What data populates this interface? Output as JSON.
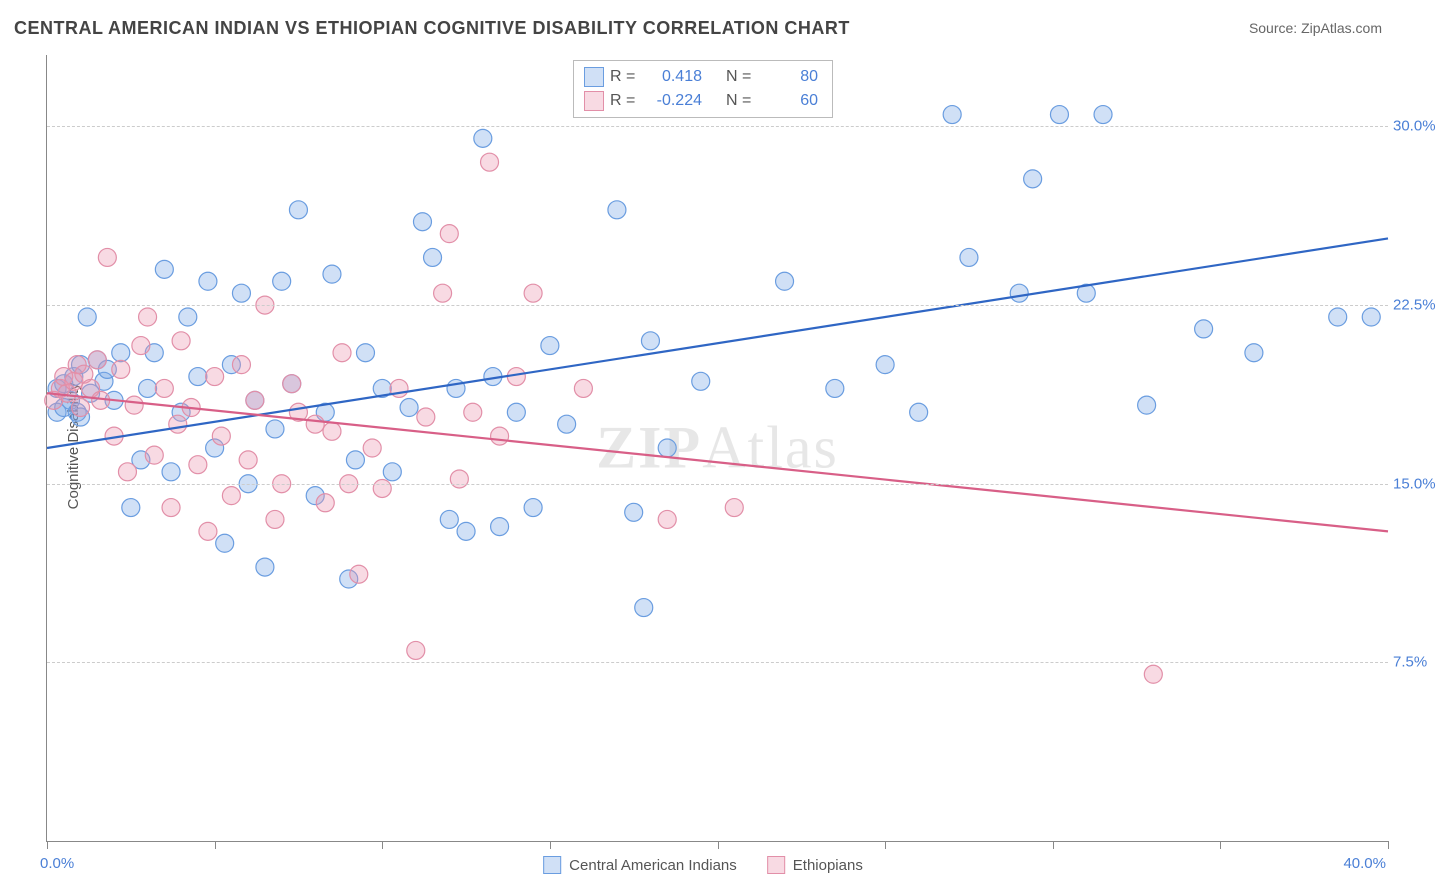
{
  "title": "CENTRAL AMERICAN INDIAN VS ETHIOPIAN COGNITIVE DISABILITY CORRELATION CHART",
  "source": "Source: ZipAtlas.com",
  "ylabel": "Cognitive Disability",
  "watermark_prefix": "ZIP",
  "watermark_suffix": "Atlas",
  "chart": {
    "type": "scatter",
    "x_range": [
      0,
      40
    ],
    "y_range": [
      0,
      33
    ],
    "x_min_label": "0.0%",
    "x_max_label": "40.0%",
    "y_gridlines": [
      7.5,
      15.0,
      22.5,
      30.0
    ],
    "y_tick_labels": [
      "7.5%",
      "15.0%",
      "22.5%",
      "30.0%"
    ],
    "x_ticks": [
      0,
      5,
      10,
      15,
      20,
      25,
      30,
      35,
      40
    ],
    "background_color": "#ffffff",
    "grid_color": "#cccccc",
    "axis_color": "#888888",
    "marker_radius": 9,
    "marker_stroke_width": 1.2,
    "trend_line_width": 2.2,
    "series": [
      {
        "name": "Central American Indians",
        "fill": "rgba(120,165,230,0.35)",
        "stroke": "#6a9de0",
        "line_color": "#2f66c4",
        "R": "0.418",
        "N": "80",
        "trend": {
          "x1": 0,
          "y1": 16.5,
          "x2": 40,
          "y2": 25.3
        },
        "points": [
          [
            0.3,
            18.0
          ],
          [
            0.3,
            19.0
          ],
          [
            0.5,
            18.2
          ],
          [
            0.5,
            19.2
          ],
          [
            0.7,
            18.5
          ],
          [
            0.8,
            19.5
          ],
          [
            0.9,
            18.0
          ],
          [
            1.0,
            20.0
          ],
          [
            1.2,
            22.0
          ],
          [
            1.3,
            18.8
          ],
          [
            1.5,
            20.2
          ],
          [
            1.7,
            19.3
          ],
          [
            1.8,
            19.8
          ],
          [
            2.0,
            18.5
          ],
          [
            2.2,
            20.5
          ],
          [
            1.0,
            17.8
          ],
          [
            2.5,
            14.0
          ],
          [
            2.8,
            16.0
          ],
          [
            3.0,
            19.0
          ],
          [
            3.2,
            20.5
          ],
          [
            3.5,
            24.0
          ],
          [
            3.7,
            15.5
          ],
          [
            4.0,
            18.0
          ],
          [
            4.2,
            22.0
          ],
          [
            4.5,
            19.5
          ],
          [
            4.8,
            23.5
          ],
          [
            5.0,
            16.5
          ],
          [
            5.3,
            12.5
          ],
          [
            5.5,
            20.0
          ],
          [
            5.8,
            23.0
          ],
          [
            6.0,
            15.0
          ],
          [
            6.2,
            18.5
          ],
          [
            6.5,
            11.5
          ],
          [
            6.8,
            17.3
          ],
          [
            7.0,
            23.5
          ],
          [
            7.3,
            19.2
          ],
          [
            7.5,
            26.5
          ],
          [
            8.0,
            14.5
          ],
          [
            8.3,
            18.0
          ],
          [
            8.5,
            23.8
          ],
          [
            9.0,
            11.0
          ],
          [
            9.2,
            16.0
          ],
          [
            9.5,
            20.5
          ],
          [
            10.0,
            19.0
          ],
          [
            10.3,
            15.5
          ],
          [
            10.8,
            18.2
          ],
          [
            11.2,
            26.0
          ],
          [
            11.5,
            24.5
          ],
          [
            12.0,
            13.5
          ],
          [
            12.2,
            19.0
          ],
          [
            12.5,
            13.0
          ],
          [
            13.0,
            29.5
          ],
          [
            13.3,
            19.5
          ],
          [
            13.5,
            13.2
          ],
          [
            14.0,
            18.0
          ],
          [
            14.5,
            14.0
          ],
          [
            15.0,
            20.8
          ],
          [
            15.5,
            17.5
          ],
          [
            17.0,
            26.5
          ],
          [
            17.5,
            13.8
          ],
          [
            17.8,
            9.8
          ],
          [
            18.0,
            21.0
          ],
          [
            18.5,
            16.5
          ],
          [
            19.5,
            19.3
          ],
          [
            22.0,
            23.5
          ],
          [
            23.5,
            19.0
          ],
          [
            25.0,
            20.0
          ],
          [
            26.0,
            18.0
          ],
          [
            27.0,
            30.5
          ],
          [
            27.5,
            24.5
          ],
          [
            29.0,
            23.0
          ],
          [
            29.4,
            27.8
          ],
          [
            30.2,
            30.5
          ],
          [
            31.0,
            23.0
          ],
          [
            31.5,
            30.5
          ],
          [
            32.8,
            18.3
          ],
          [
            34.5,
            21.5
          ],
          [
            36.0,
            20.5
          ],
          [
            38.5,
            22.0
          ],
          [
            39.5,
            22.0
          ]
        ]
      },
      {
        "name": "Ethiopians",
        "fill": "rgba(235,150,175,0.35)",
        "stroke": "#e28fa8",
        "line_color": "#d85f87",
        "R": "-0.224",
        "N": "60",
        "trend": {
          "x1": 0,
          "y1": 18.8,
          "x2": 40,
          "y2": 13.0
        },
        "points": [
          [
            0.2,
            18.5
          ],
          [
            0.4,
            19.0
          ],
          [
            0.5,
            19.5
          ],
          [
            0.6,
            18.8
          ],
          [
            0.8,
            19.3
          ],
          [
            0.9,
            20.0
          ],
          [
            1.0,
            18.2
          ],
          [
            1.1,
            19.6
          ],
          [
            1.3,
            19.0
          ],
          [
            1.5,
            20.2
          ],
          [
            1.6,
            18.5
          ],
          [
            1.8,
            24.5
          ],
          [
            2.0,
            17.0
          ],
          [
            2.2,
            19.8
          ],
          [
            2.4,
            15.5
          ],
          [
            2.6,
            18.3
          ],
          [
            2.8,
            20.8
          ],
          [
            3.0,
            22.0
          ],
          [
            3.2,
            16.2
          ],
          [
            3.5,
            19.0
          ],
          [
            3.7,
            14.0
          ],
          [
            3.9,
            17.5
          ],
          [
            4.0,
            21.0
          ],
          [
            4.3,
            18.2
          ],
          [
            4.5,
            15.8
          ],
          [
            4.8,
            13.0
          ],
          [
            5.0,
            19.5
          ],
          [
            5.2,
            17.0
          ],
          [
            5.5,
            14.5
          ],
          [
            5.8,
            20.0
          ],
          [
            6.0,
            16.0
          ],
          [
            6.2,
            18.5
          ],
          [
            6.5,
            22.5
          ],
          [
            6.8,
            13.5
          ],
          [
            7.0,
            15.0
          ],
          [
            7.3,
            19.2
          ],
          [
            7.5,
            18.0
          ],
          [
            8.0,
            17.5
          ],
          [
            8.3,
            14.2
          ],
          [
            8.5,
            17.2
          ],
          [
            8.8,
            20.5
          ],
          [
            9.0,
            15.0
          ],
          [
            9.3,
            11.2
          ],
          [
            9.7,
            16.5
          ],
          [
            10.0,
            14.8
          ],
          [
            10.5,
            19.0
          ],
          [
            11.0,
            8.0
          ],
          [
            11.3,
            17.8
          ],
          [
            11.8,
            23.0
          ],
          [
            12.0,
            25.5
          ],
          [
            12.3,
            15.2
          ],
          [
            12.7,
            18.0
          ],
          [
            13.2,
            28.5
          ],
          [
            13.5,
            17.0
          ],
          [
            14.0,
            19.5
          ],
          [
            14.5,
            23.0
          ],
          [
            16.0,
            19.0
          ],
          [
            18.5,
            13.5
          ],
          [
            20.5,
            14.0
          ],
          [
            33.0,
            7.0
          ]
        ]
      }
    ]
  },
  "legend_labels": {
    "series1": "Central American Indians",
    "series2": "Ethiopians",
    "R_label": "R =",
    "N_label": "N ="
  }
}
